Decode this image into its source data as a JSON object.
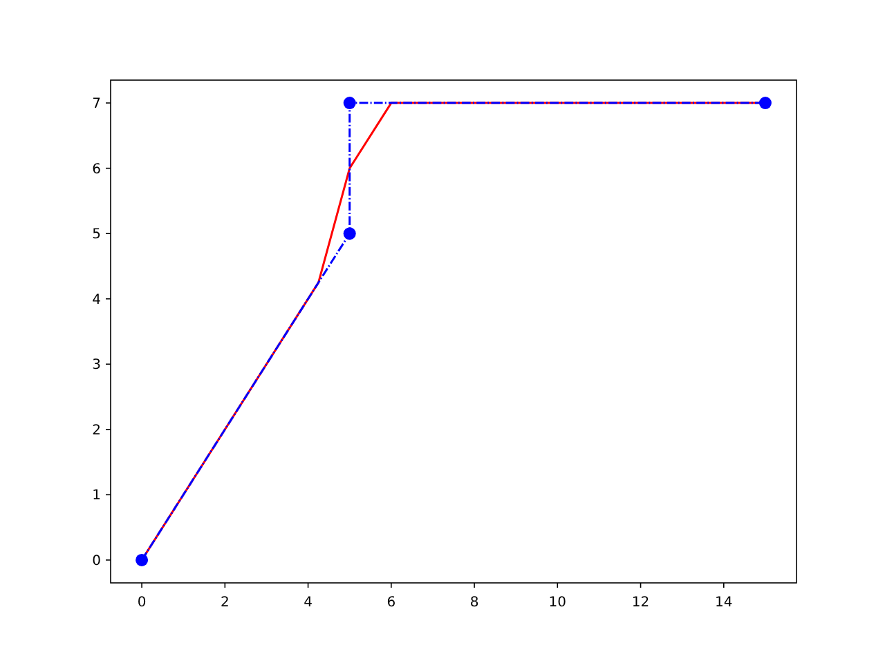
{
  "chart_data": {
    "type": "line",
    "xlim": [
      -0.75,
      15.75
    ],
    "ylim": [
      -0.35,
      7.35
    ],
    "xticks": [
      0,
      2,
      4,
      6,
      8,
      10,
      12,
      14
    ],
    "yticks": [
      0,
      1,
      2,
      3,
      4,
      5,
      6,
      7
    ],
    "series": [
      {
        "color": "#ff0000",
        "x": [
          0,
          4.25,
          5,
          6,
          15
        ],
        "values": [
          0,
          4.25,
          6,
          7,
          7
        ],
        "marker": "none",
        "line_style": "solid"
      },
      {
        "color": "#0000ff",
        "x": [
          0,
          5,
          5,
          15
        ],
        "values": [
          0,
          5,
          7,
          7
        ],
        "marker": "circle",
        "line_style": "dashdot"
      }
    ]
  }
}
